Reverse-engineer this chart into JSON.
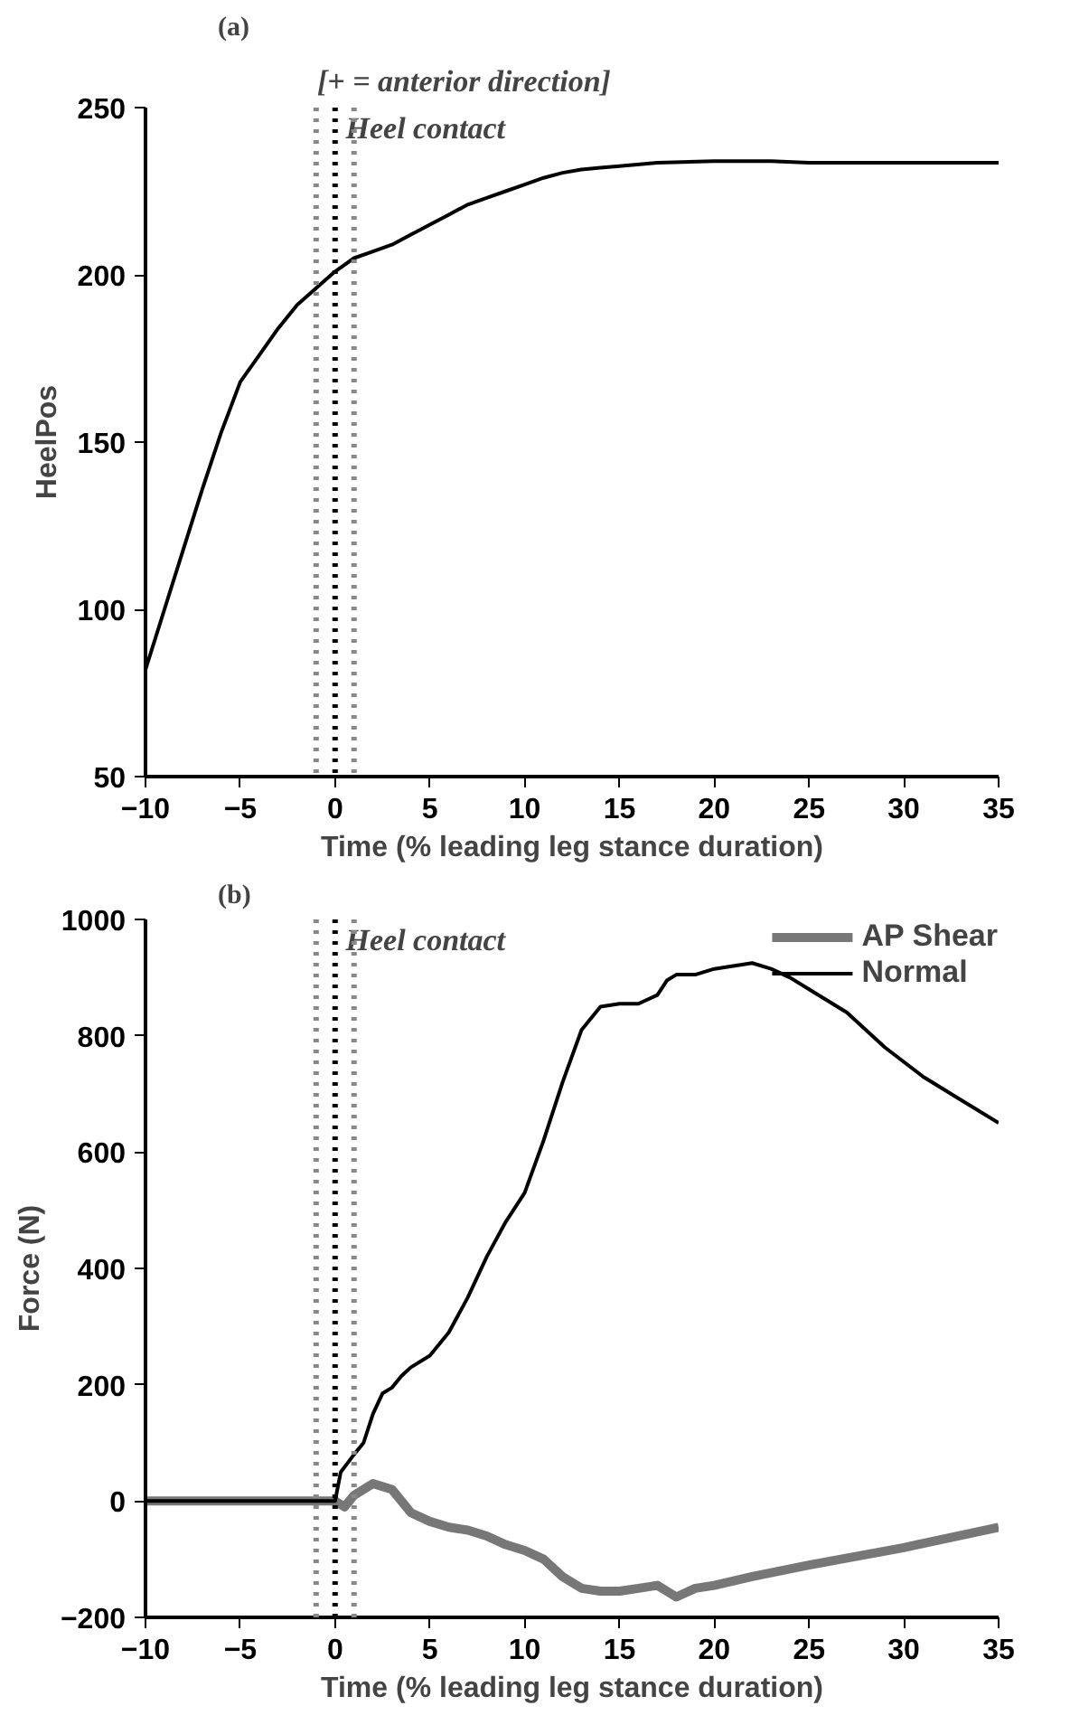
{
  "chart_data": [
    {
      "type": "line",
      "title": "(a)",
      "annotations": [
        "[+ = anterior direction]"
      ],
      "xlabel": "Time (% leading leg stance duration)",
      "ylabel": "HeelPos",
      "xlim": [
        -10,
        35
      ],
      "xticks": [
        -10,
        -5,
        0,
        5,
        10,
        15,
        20,
        25,
        30,
        35
      ],
      "ylim": [
        50,
        250
      ],
      "yticks": [
        50,
        100,
        150,
        200,
        250
      ],
      "grid": false,
      "legend": false,
      "ref_lines": [
        {
          "axis": "x",
          "value": -1,
          "color": "#888888",
          "line_style": "dotted"
        },
        {
          "axis": "x",
          "value": 0,
          "color": "#000000",
          "line_style": "dotted",
          "label": "Heel contact"
        },
        {
          "axis": "x",
          "value": 1,
          "color": "#888888",
          "line_style": "dotted"
        }
      ],
      "series": [
        {
          "color": "#000000",
          "x": [
            -10,
            -9,
            -8,
            -7,
            -6,
            -5,
            -4,
            -3,
            -2,
            -1,
            0,
            1,
            2,
            3,
            4,
            5,
            6,
            7,
            8,
            9,
            10,
            11,
            12,
            13,
            14,
            15,
            17,
            20,
            23,
            25,
            30,
            35
          ],
          "values": [
            82,
            100,
            118,
            136,
            153,
            168,
            176,
            184,
            191,
            196,
            201,
            205,
            207,
            209,
            212,
            215,
            218,
            221,
            223,
            225,
            227,
            229,
            230.5,
            231.5,
            232,
            232.5,
            233.5,
            234,
            234,
            233.5,
            233.5,
            233.5
          ]
        }
      ]
    },
    {
      "type": "line",
      "title": "(b)",
      "xlabel": "Time (% leading leg stance duration)",
      "ylabel": "Force (N)",
      "xlim": [
        -10,
        35
      ],
      "xticks": [
        -10,
        -5,
        0,
        5,
        10,
        15,
        20,
        25,
        30,
        35
      ],
      "ylim": [
        -200,
        1000
      ],
      "yticks": [
        -200,
        0,
        200,
        400,
        600,
        800,
        1000
      ],
      "grid": false,
      "legend": "top right",
      "ref_lines": [
        {
          "axis": "x",
          "value": -1,
          "color": "#888888",
          "line_style": "dotted"
        },
        {
          "axis": "x",
          "value": 0,
          "color": "#000000",
          "line_style": "dotted",
          "label": "Heel contact"
        },
        {
          "axis": "x",
          "value": 1,
          "color": "#888888",
          "line_style": "dotted"
        }
      ],
      "series": [
        {
          "name": "AP Shear",
          "color": "#777777",
          "x": [
            -10,
            -5,
            0,
            0.5,
            1,
            1.5,
            2,
            3,
            4,
            5,
            6,
            7,
            8,
            9,
            10,
            11,
            12,
            13,
            14,
            15,
            16,
            17,
            17.5,
            18,
            19,
            20,
            22,
            25,
            30,
            35
          ],
          "values": [
            0,
            0,
            0,
            -10,
            10,
            20,
            30,
            20,
            -20,
            -35,
            -45,
            -50,
            -60,
            -75,
            -85,
            -100,
            -130,
            -150,
            -155,
            -155,
            -150,
            -145,
            -155,
            -165,
            -150,
            -145,
            -130,
            -110,
            -80,
            -45
          ]
        },
        {
          "name": "Normal",
          "color": "#000000",
          "x": [
            -10,
            -5,
            0,
            0.3,
            1,
            1.5,
            2,
            2.5,
            3,
            3.5,
            4,
            5,
            6,
            7,
            8,
            9,
            10,
            11,
            12,
            13,
            14,
            15,
            16,
            17,
            17.5,
            18,
            19,
            20,
            21,
            22,
            23,
            24,
            25,
            27,
            29,
            31,
            33,
            35
          ],
          "values": [
            0,
            0,
            0,
            50,
            80,
            100,
            150,
            185,
            195,
            215,
            230,
            250,
            290,
            350,
            420,
            480,
            530,
            620,
            720,
            810,
            850,
            855,
            855,
            870,
            895,
            905,
            905,
            915,
            920,
            925,
            915,
            900,
            880,
            840,
            780,
            730,
            690,
            650
          ]
        }
      ]
    }
  ]
}
